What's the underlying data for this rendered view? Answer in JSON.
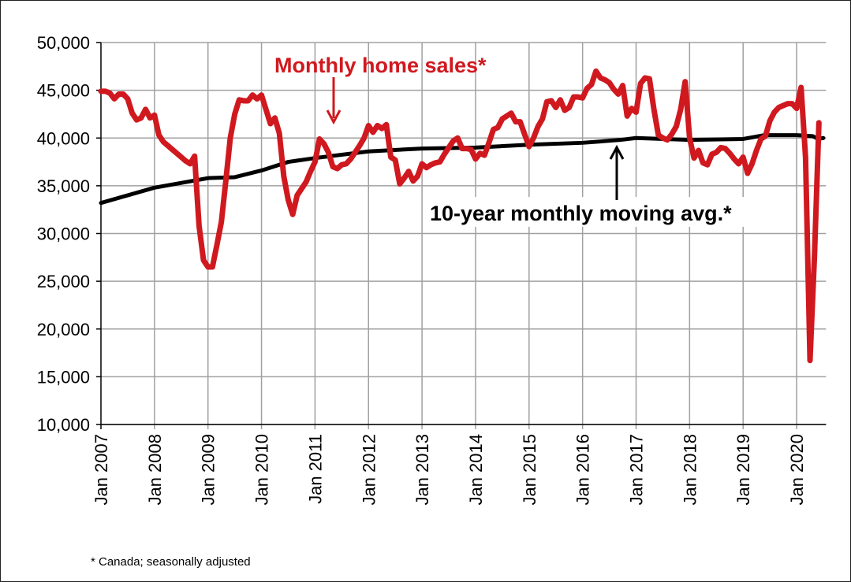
{
  "chart_data": {
    "type": "line",
    "title": "",
    "xlabel": "",
    "ylabel": "",
    "ylim": [
      10000,
      50000
    ],
    "yticks": [
      10000,
      15000,
      20000,
      25000,
      30000,
      35000,
      40000,
      45000,
      50000
    ],
    "ytick_labels": [
      "10,000",
      "15,000",
      "20,000",
      "25,000",
      "30,000",
      "35,000",
      "40,000",
      "45,000",
      "50,000"
    ],
    "xlim": [
      2007.0,
      2020.5
    ],
    "xtick_labels": [
      "Jan 2007",
      "Jan 2008",
      "Jan 2009",
      "Jan 2010",
      "Jan 2011",
      "Jan 2012",
      "Jan 2013",
      "Jan 2014",
      "Jan 2015",
      "Jan 2016",
      "Jan 2017",
      "Jan 2018",
      "Jan 2019",
      "Jan 2020"
    ],
    "grid": true,
    "series": [
      {
        "name": "Monthly home sales*",
        "color": "#d0191f",
        "start": "Jan 2007",
        "frequency": "monthly",
        "values": [
          44900,
          44900,
          44700,
          44100,
          44600,
          44600,
          44100,
          42600,
          41900,
          42100,
          43000,
          42100,
          42400,
          40300,
          39600,
          39200,
          38800,
          38400,
          38000,
          37600,
          37300,
          38100,
          30800,
          27200,
          26500,
          26500,
          28800,
          31200,
          35500,
          40000,
          42500,
          44000,
          43900,
          43900,
          44500,
          44100,
          44500,
          43000,
          41500,
          42100,
          40500,
          36000,
          33500,
          32000,
          34000,
          34700,
          35400,
          36500,
          37500,
          39900,
          39400,
          38500,
          37000,
          36800,
          37200,
          37300,
          37800,
          38500,
          39200,
          40000,
          41300,
          40600,
          41300,
          41000,
          41400,
          38000,
          37700,
          35200,
          35800,
          36500,
          35500,
          36000,
          37300,
          36900,
          37200,
          37400,
          37500,
          38300,
          39000,
          39700,
          40000,
          38900,
          38900,
          38800,
          37800,
          38400,
          38200,
          39500,
          40900,
          41100,
          42000,
          42300,
          42600,
          41700,
          41700,
          40400,
          39100,
          40000,
          41200,
          42000,
          43800,
          43900,
          43200,
          44000,
          42900,
          43200,
          44300,
          44300,
          44200,
          45200,
          45600,
          47000,
          46300,
          46100,
          45800,
          45100,
          44600,
          45500,
          42300,
          43100,
          42700,
          45700,
          46300,
          46200,
          43000,
          40300,
          40000,
          39800,
          40400,
          41200,
          43000,
          45900,
          40000,
          37900,
          38700,
          37400,
          37200,
          38300,
          38500,
          39000,
          38900,
          38400,
          37800,
          37300,
          38000,
          36300,
          37300,
          38700,
          39900,
          40200,
          41800,
          42700,
          43200,
          43400,
          43600,
          43600,
          43100,
          45300,
          38000,
          16700,
          27600,
          41600
        ]
      },
      {
        "name": "10-year monthly moving avg.*",
        "color": "#000000",
        "points": [
          [
            2007.0,
            33200
          ],
          [
            2008.0,
            34800
          ],
          [
            2009.0,
            35800
          ],
          [
            2009.5,
            35900
          ],
          [
            2010.0,
            36600
          ],
          [
            2010.5,
            37500
          ],
          [
            2011.0,
            37900
          ],
          [
            2012.0,
            38600
          ],
          [
            2013.0,
            38900
          ],
          [
            2014.0,
            39000
          ],
          [
            2015.0,
            39300
          ],
          [
            2016.0,
            39500
          ],
          [
            2016.7,
            39800
          ],
          [
            2017.0,
            40000
          ],
          [
            2018.0,
            39800
          ],
          [
            2019.0,
            39900
          ],
          [
            2019.4,
            40300
          ],
          [
            2020.0,
            40300
          ],
          [
            2020.3,
            40200
          ],
          [
            2020.4,
            39900
          ],
          [
            2020.5,
            40000
          ]
        ]
      }
    ],
    "annotations": [
      "Monthly home sales*",
      "10-year monthly moving avg.*"
    ],
    "footnote": "* Canada; seasonally adjusted"
  }
}
